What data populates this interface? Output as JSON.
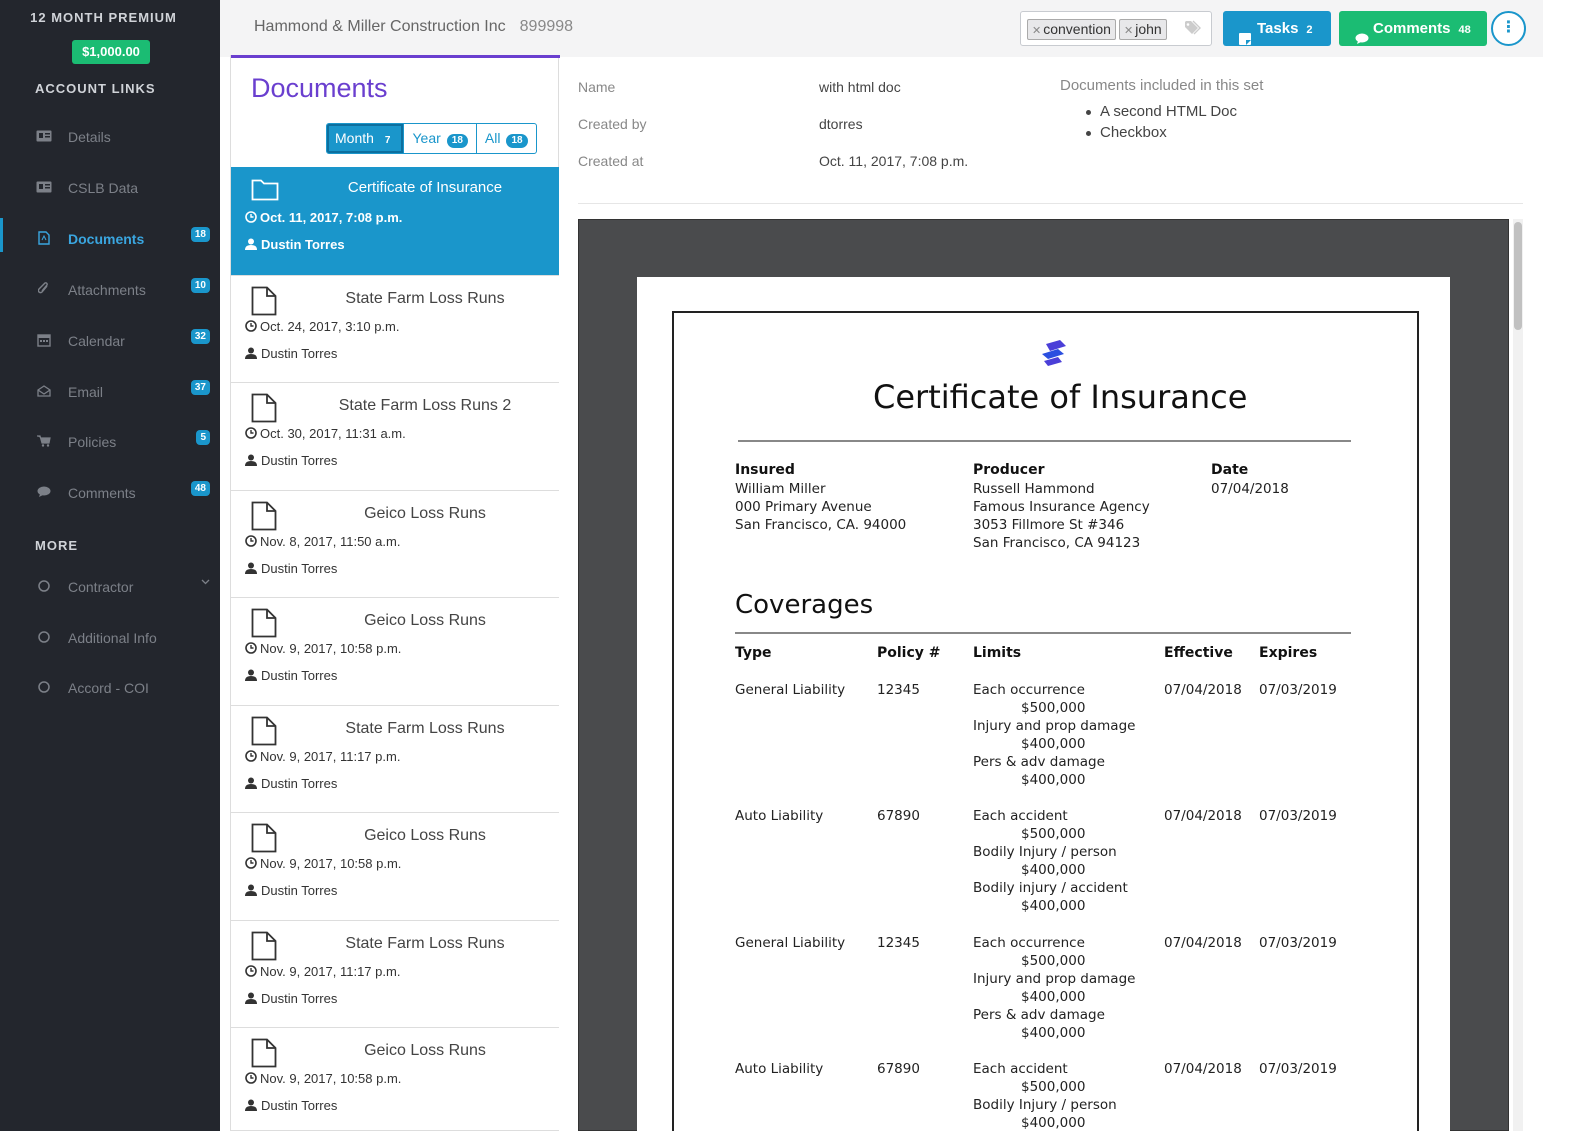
{
  "sidebar": {
    "plan": "12 MONTH PREMIUM",
    "price": "$1,000.00",
    "account_links_title": "ACCOUNT LINKS",
    "items": [
      {
        "label": "Details",
        "badge": "",
        "icon": "id-card-icon"
      },
      {
        "label": "CSLB Data",
        "badge": "",
        "icon": "id-card-icon"
      },
      {
        "label": "Documents",
        "badge": "18",
        "icon": "pdf-file-icon",
        "active": true
      },
      {
        "label": "Attachments",
        "badge": "10",
        "icon": "paperclip-icon"
      },
      {
        "label": "Calendar",
        "badge": "32",
        "icon": "calendar-icon"
      },
      {
        "label": "Email",
        "badge": "37",
        "icon": "envelope-icon"
      },
      {
        "label": "Policies",
        "badge": "5",
        "icon": "cart-icon"
      },
      {
        "label": "Comments",
        "badge": "48",
        "icon": "comment-icon"
      }
    ],
    "more_title": "MORE",
    "more_items": [
      {
        "label": "Contractor",
        "icon": "circle-icon"
      },
      {
        "label": "Additional Info",
        "icon": "circle-icon"
      },
      {
        "label": "Accord - COI",
        "icon": "circle-icon"
      }
    ]
  },
  "header": {
    "company": "Hammond & Miller Construction Inc",
    "company_id": "899998",
    "tags": [
      "convention",
      "john"
    ],
    "tasks_label": "Tasks",
    "tasks_count": "2",
    "comments_label": "Comments",
    "comments_count": "48",
    "more_symbol": "⋮"
  },
  "documents": {
    "title": "Documents",
    "filters": [
      {
        "label": "Month",
        "count": "7",
        "active": true
      },
      {
        "label": "Year",
        "count": "18"
      },
      {
        "label": "All",
        "count": "18"
      }
    ],
    "items": [
      {
        "name": "Certificate of Insurance",
        "date": "Oct. 11, 2017, 7:08 p.m.",
        "user": "Dustin Torres",
        "type": "folder",
        "selected": true
      },
      {
        "name": "State Farm Loss Runs",
        "date": "Oct. 24, 2017, 3:10 p.m.",
        "user": "Dustin Torres",
        "type": "file"
      },
      {
        "name": "State Farm Loss Runs 2",
        "date": "Oct. 30, 2017, 11:31 a.m.",
        "user": "Dustin Torres",
        "type": "file"
      },
      {
        "name": "Geico Loss Runs",
        "date": "Nov. 8, 2017, 11:50 a.m.",
        "user": "Dustin Torres",
        "type": "file"
      },
      {
        "name": "Geico Loss Runs",
        "date": "Nov. 9, 2017, 10:58 p.m.",
        "user": "Dustin Torres",
        "type": "file"
      },
      {
        "name": "State Farm Loss Runs",
        "date": "Nov. 9, 2017, 11:17 p.m.",
        "user": "Dustin Torres",
        "type": "file"
      },
      {
        "name": "Geico Loss Runs",
        "date": "Nov. 9, 2017, 10:58 p.m.",
        "user": "Dustin Torres",
        "type": "file"
      },
      {
        "name": "State Farm Loss Runs",
        "date": "Nov. 9, 2017, 11:17 p.m.",
        "user": "Dustin Torres",
        "type": "file"
      },
      {
        "name": "Geico Loss Runs",
        "date": "Nov. 9, 2017, 10:58 p.m.",
        "user": "Dustin Torres",
        "type": "file"
      }
    ]
  },
  "detail": {
    "name_label": "Name",
    "name_value": "with html doc",
    "created_by_label": "Created by",
    "created_by_value": "dtorres",
    "created_at_label": "Created at",
    "created_at_value": "Oct. 11, 2017, 7:08 p.m.",
    "included_title": "Documents included in this set",
    "included": [
      "A second HTML Doc",
      "Checkbox"
    ]
  },
  "certificate": {
    "title": "Certificate of Insurance",
    "insured_label": "Insured",
    "insured_lines": [
      "William Miller",
      "000 Primary Avenue",
      "San Francisco, CA. 94000"
    ],
    "producer_label": "Producer",
    "producer_lines": [
      "Russell Hammond",
      "Famous Insurance Agency",
      "3053 Fillmore St #346",
      "San Francisco, CA 94123"
    ],
    "date_label": "Date",
    "date_value": "07/04/2018",
    "coverages_title": "Coverages",
    "columns": [
      "Type",
      "Policy #",
      "Limits",
      "Effective",
      "Expires"
    ],
    "rows": [
      {
        "type": "General Liability",
        "policy": "12345",
        "limits": [
          "Each occurrence",
          "$500,000",
          "Injury and prop damage",
          "$400,000",
          "Pers & adv damage",
          "$400,000"
        ],
        "effective": "07/04/2018",
        "expires": "07/03/2019"
      },
      {
        "type": "Auto Liability",
        "policy": "67890",
        "limits": [
          "Each accident",
          "$500,000",
          "Bodily Injury / person",
          "$400,000",
          "Bodily injury / accident",
          "$400,000"
        ],
        "effective": "07/04/2018",
        "expires": "07/03/2019"
      },
      {
        "type": "General Liability",
        "policy": "12345",
        "limits": [
          "Each occurrence",
          "$500,000",
          "Injury and prop damage",
          "$400,000",
          "Pers & adv damage",
          "$400,000"
        ],
        "effective": "07/04/2018",
        "expires": "07/03/2019"
      },
      {
        "type": "Auto Liability",
        "policy": "67890",
        "limits": [
          "Each accident",
          "$500,000",
          "Bodily Injury / person",
          "$400,000"
        ],
        "effective": "07/04/2018",
        "expires": "07/03/2019"
      }
    ]
  },
  "colors": {
    "accent": "#1a96cb",
    "purple": "#6a3fcf",
    "green": "#1bbc73",
    "sidebar": "#23262d"
  }
}
